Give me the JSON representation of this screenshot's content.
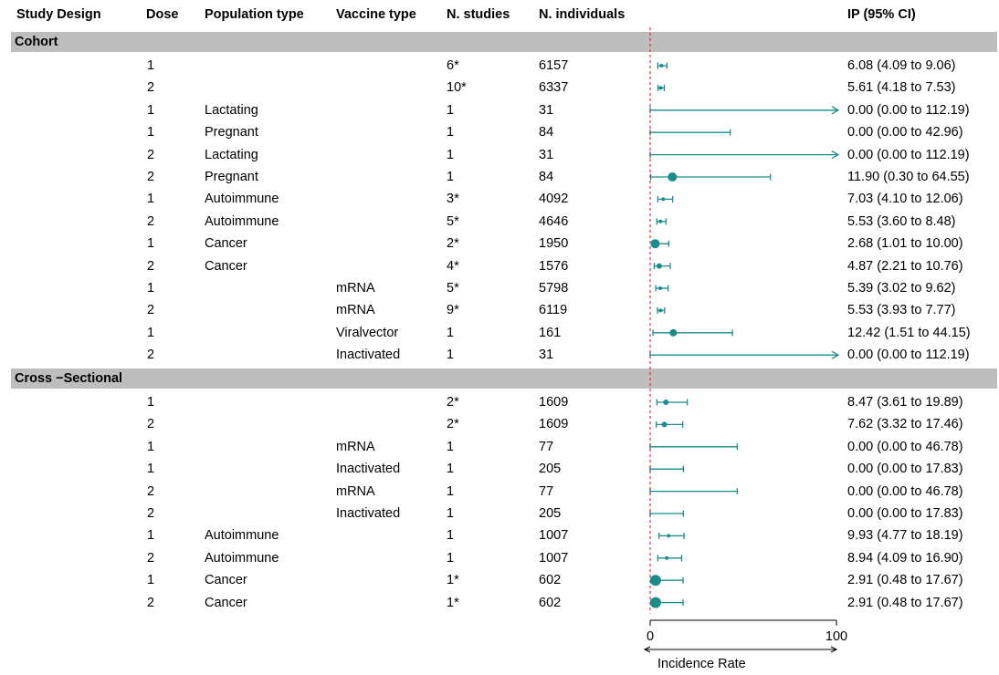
{
  "headers": {
    "design": "Study Design",
    "dose": "Dose",
    "population": "Population type",
    "vaccine": "Vaccine type",
    "studies": "N. studies",
    "individuals": "N. individuals",
    "ip": "IP (95% CI)"
  },
  "chart_data": {
    "type": "forest",
    "xlabel": "Incidence Rate",
    "xlim": [
      0,
      100
    ],
    "xticks": [
      "0",
      "100"
    ],
    "reference_line": 0,
    "colors": {
      "marker": "#1a8c8c",
      "reference": "#e0303a",
      "band": "#bebebe"
    },
    "groups": [
      {
        "name": "Cohort",
        "rows": [
          {
            "dose": "1",
            "population": "",
            "vaccine": "",
            "studies": "6*",
            "individuals": "6157",
            "est": 6.08,
            "lo": 4.09,
            "hi": 9.06,
            "w": 2,
            "text": "6.08 (4.09 to 9.06)"
          },
          {
            "dose": "2",
            "population": "",
            "vaccine": "",
            "studies": "10*",
            "individuals": "6337",
            "est": 5.61,
            "lo": 4.18,
            "hi": 7.53,
            "w": 2,
            "text": "5.61 (4.18 to 7.53)"
          },
          {
            "dose": "1",
            "population": "Lactating",
            "vaccine": "",
            "studies": "1",
            "individuals": "31",
            "est": 0.0,
            "lo": 0.0,
            "hi": 112.19,
            "w": 1,
            "text": "0.00 (0.00 to 112.19)"
          },
          {
            "dose": "1",
            "population": "Pregnant",
            "vaccine": "",
            "studies": "1",
            "individuals": "84",
            "est": 0.0,
            "lo": 0.0,
            "hi": 42.96,
            "w": 1,
            "text": "0.00 (0.00 to 42.96)"
          },
          {
            "dose": "2",
            "population": "Lactating",
            "vaccine": "",
            "studies": "1",
            "individuals": "31",
            "est": 0.0,
            "lo": 0.0,
            "hi": 112.19,
            "w": 1,
            "text": "0.00 (0.00 to 112.19)"
          },
          {
            "dose": "2",
            "population": "Pregnant",
            "vaccine": "",
            "studies": "1",
            "individuals": "84",
            "est": 11.9,
            "lo": 0.3,
            "hi": 64.55,
            "w": 5,
            "text": "11.90 (0.30 to 64.55)"
          },
          {
            "dose": "1",
            "population": "Autoimmune",
            "vaccine": "",
            "studies": "3*",
            "individuals": "4092",
            "est": 7.03,
            "lo": 4.1,
            "hi": 12.06,
            "w": 2,
            "text": "7.03 (4.10 to 12.06)"
          },
          {
            "dose": "2",
            "population": "Autoimmune",
            "vaccine": "",
            "studies": "5*",
            "individuals": "4646",
            "est": 5.53,
            "lo": 3.6,
            "hi": 8.48,
            "w": 2,
            "text": "5.53 (3.60 to 8.48)"
          },
          {
            "dose": "1",
            "population": "Cancer",
            "vaccine": "",
            "studies": "2*",
            "individuals": "1950",
            "est": 2.68,
            "lo": 1.01,
            "hi": 10.0,
            "w": 5,
            "text": "2.68 (1.01 to 10.00)"
          },
          {
            "dose": "2",
            "population": "Cancer",
            "vaccine": "",
            "studies": "4*",
            "individuals": "1576",
            "est": 4.87,
            "lo": 2.21,
            "hi": 10.76,
            "w": 3,
            "text": "4.87 (2.21 to 10.76)"
          },
          {
            "dose": "1",
            "population": "",
            "vaccine": "mRNA",
            "studies": "5*",
            "individuals": "5798",
            "est": 5.39,
            "lo": 3.02,
            "hi": 9.62,
            "w": 2,
            "text": "5.39 (3.02 to 9.62)"
          },
          {
            "dose": "2",
            "population": "",
            "vaccine": "mRNA",
            "studies": "9*",
            "individuals": "6119",
            "est": 5.53,
            "lo": 3.93,
            "hi": 7.77,
            "w": 2,
            "text": "5.53 (3.93 to 7.77)"
          },
          {
            "dose": "1",
            "population": "",
            "vaccine": "Viralvector",
            "studies": "1",
            "individuals": "161",
            "est": 12.42,
            "lo": 1.51,
            "hi": 44.15,
            "w": 4,
            "text": "12.42 (1.51 to 44.15)"
          },
          {
            "dose": "2",
            "population": "",
            "vaccine": "Inactivated",
            "studies": "1",
            "individuals": "31",
            "est": 0.0,
            "lo": 0.0,
            "hi": 112.19,
            "w": 1,
            "text": "0.00 (0.00 to 112.19)"
          }
        ]
      },
      {
        "name": "Cross −Sectional",
        "rows": [
          {
            "dose": "1",
            "population": "",
            "vaccine": "",
            "studies": "2*",
            "individuals": "1609",
            "est": 8.47,
            "lo": 3.61,
            "hi": 19.89,
            "w": 3,
            "text": "8.47 (3.61 to 19.89)"
          },
          {
            "dose": "2",
            "population": "",
            "vaccine": "",
            "studies": "2*",
            "individuals": "1609",
            "est": 7.62,
            "lo": 3.32,
            "hi": 17.46,
            "w": 3,
            "text": "7.62 (3.32 to 17.46)"
          },
          {
            "dose": "1",
            "population": "",
            "vaccine": "mRNA",
            "studies": "1",
            "individuals": "77",
            "est": 0.0,
            "lo": 0.0,
            "hi": 46.78,
            "w": 1,
            "text": "0.00 (0.00 to 46.78)"
          },
          {
            "dose": "1",
            "population": "",
            "vaccine": "Inactivated",
            "studies": "1",
            "individuals": "205",
            "est": 0.0,
            "lo": 0.0,
            "hi": 17.83,
            "w": 1,
            "text": "0.00 (0.00 to 17.83)"
          },
          {
            "dose": "2",
            "population": "",
            "vaccine": "mRNA",
            "studies": "1",
            "individuals": "77",
            "est": 0.0,
            "lo": 0.0,
            "hi": 46.78,
            "w": 1,
            "text": "0.00 (0.00 to 46.78)"
          },
          {
            "dose": "2",
            "population": "",
            "vaccine": "Inactivated",
            "studies": "1",
            "individuals": "205",
            "est": 0.0,
            "lo": 0.0,
            "hi": 17.83,
            "w": 1,
            "text": "0.00 (0.00 to 17.83)"
          },
          {
            "dose": "1",
            "population": "Autoimmune",
            "vaccine": "",
            "studies": "1",
            "individuals": "1007",
            "est": 9.93,
            "lo": 4.77,
            "hi": 18.19,
            "w": 2,
            "text": "9.93 (4.77 to 18.19)"
          },
          {
            "dose": "2",
            "population": "Autoimmune",
            "vaccine": "",
            "studies": "1",
            "individuals": "1007",
            "est": 8.94,
            "lo": 4.09,
            "hi": 16.9,
            "w": 2,
            "text": "8.94 (4.09 to 16.90)"
          },
          {
            "dose": "1",
            "population": "Cancer",
            "vaccine": "",
            "studies": "1*",
            "individuals": "602",
            "est": 2.91,
            "lo": 0.48,
            "hi": 17.67,
            "w": 6,
            "text": "2.91 (0.48 to 17.67)"
          },
          {
            "dose": "2",
            "population": "Cancer",
            "vaccine": "",
            "studies": "1*",
            "individuals": "602",
            "est": 2.91,
            "lo": 0.48,
            "hi": 17.67,
            "w": 6,
            "text": "2.91 (0.48 to 17.67)"
          }
        ]
      }
    ]
  }
}
